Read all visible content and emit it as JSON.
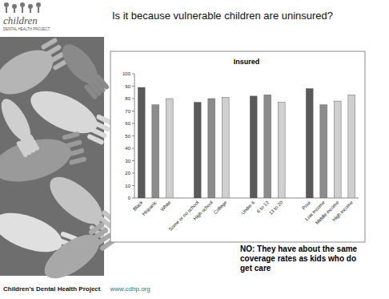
{
  "page": {
    "title": "Is it because vulnerable children are uninsured?",
    "annotation": "NO: They have about the same coverage rates as kids who do get care",
    "footer": {
      "name": "Children's Dental Health Project",
      "url": "www.cdhp.org"
    },
    "logo": [
      "children",
      "DENTAL HEALTH PROJECT"
    ]
  },
  "chart_data": {
    "type": "bar",
    "title": "Insured",
    "categories": [
      "Black",
      "Hispanic",
      "White",
      null,
      "Some or no school",
      "High school",
      "College",
      null,
      "Under 6",
      "6 to 12",
      "13 to 20",
      null,
      "Poor",
      "Low income",
      "Middle income",
      "High income"
    ],
    "values": [
      89,
      75,
      80,
      null,
      77,
      80,
      81,
      null,
      82,
      83,
      77,
      null,
      88,
      75,
      78,
      83
    ],
    "colors": [
      "#5a5a5a",
      "#8c8c8c",
      "#cfcfcf",
      null,
      "#5a5a5a",
      "#8c8c8c",
      "#cfcfcf",
      null,
      "#5a5a5a",
      "#8c8c8c",
      "#cfcfcf",
      null,
      "#5a5a5a",
      "#8c8c8c",
      "#cfcfcf",
      "#cfcfcf"
    ],
    "ylim": [
      0,
      100
    ],
    "yticks": [
      0,
      10,
      20,
      30,
      40,
      50,
      60,
      70,
      80,
      90,
      100
    ],
    "grid": false
  }
}
